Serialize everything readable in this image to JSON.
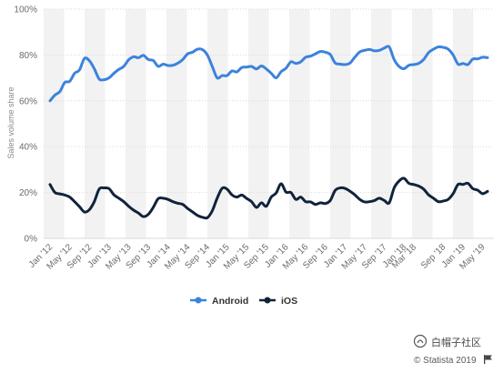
{
  "watermark": {
    "text": "白帽子社区",
    "icon": "wechat-official-account-icon"
  },
  "credit": {
    "text": "© Statista 2019",
    "icon": "flag-icon"
  },
  "chart_data": {
    "type": "line",
    "ylabel": "Sales volume share",
    "xlabel": "",
    "title": "",
    "ylim": [
      0,
      100
    ],
    "y_ticks": [
      "0%",
      "20%",
      "40%",
      "60%",
      "80%",
      "100%"
    ],
    "y_tick_values": [
      0,
      20,
      40,
      60,
      80,
      100
    ],
    "grid": "horizontal",
    "legend_position": "bottom-center",
    "x_ticks": [
      "Jan '12",
      "May '12",
      "Sep '12",
      "Jan '13",
      "May '13",
      "Sep '13",
      "Jan '14",
      "May '14",
      "Sep '14",
      "Jan '15",
      "May '15",
      "Sep '15",
      "Jan '16",
      "May '16",
      "Sep '16",
      "Jan '17",
      "May '17",
      "Sep '17",
      "Jan '18",
      "Mar '18",
      "Sep '18",
      "Jan '19",
      "May '19"
    ],
    "x_tick_months": [
      0,
      4,
      8,
      12,
      16,
      20,
      24,
      28,
      32,
      36,
      40,
      44,
      48,
      52,
      56,
      60,
      64,
      68,
      72,
      74,
      80,
      84,
      88
    ],
    "x": [
      "Jan '12",
      "Feb '12",
      "Mar '12",
      "Apr '12",
      "May '12",
      "Jun '12",
      "Jul '12",
      "Aug '12",
      "Sep '12",
      "Oct '12",
      "Nov '12",
      "Dec '12",
      "Jan '13",
      "Feb '13",
      "Mar '13",
      "Apr '13",
      "May '13",
      "Jun '13",
      "Jul '13",
      "Aug '13",
      "Sep '13",
      "Oct '13",
      "Nov '13",
      "Dec '13",
      "Jan '14",
      "Feb '14",
      "Mar '14",
      "Apr '14",
      "May '14",
      "Jun '14",
      "Jul '14",
      "Aug '14",
      "Sep '14",
      "Oct '14",
      "Nov '14",
      "Dec '14",
      "Jan '15",
      "Feb '15",
      "Mar '15",
      "Apr '15",
      "May '15",
      "Jun '15",
      "Jul '15",
      "Aug '15",
      "Sep '15",
      "Oct '15",
      "Nov '15",
      "Dec '15",
      "Jan '16",
      "Feb '16",
      "Mar '16",
      "Apr '16",
      "May '16",
      "Jun '16",
      "Jul '16",
      "Aug '16",
      "Sep '16",
      "Oct '16",
      "Nov '16",
      "Dec '16",
      "Jan '17",
      "Feb '17",
      "Mar '17",
      "Apr '17",
      "May '17",
      "Jun '17",
      "Jul '17",
      "Aug '17",
      "Sep '17",
      "Oct '17",
      "Nov '17",
      "Dec '17",
      "Jan '18",
      "Feb '18",
      "Mar '18",
      "Apr '18",
      "May '18",
      "Jun '18",
      "Jul '18",
      "Aug '18",
      "Sep '18",
      "Oct '18",
      "Nov '18",
      "Dec '18",
      "Jan '19",
      "Feb '19",
      "Mar '19",
      "Apr '19",
      "May '19",
      "Jun '19"
    ],
    "series": [
      {
        "name": "Android",
        "color": "#3b83db",
        "values": [
          60,
          62.5,
          64,
          68,
          68.5,
          72,
          73.5,
          78.5,
          77.5,
          74,
          69.5,
          69.2,
          70,
          72,
          73.7,
          75,
          77.9,
          79.2,
          78.8,
          79.8,
          78,
          77.6,
          75,
          76,
          75.4,
          75.5,
          76.4,
          78,
          80.5,
          81.2,
          82.5,
          82.3,
          80,
          75,
          70,
          71,
          71,
          73,
          72.6,
          74.5,
          74.7,
          75,
          73.9,
          75.2,
          73.9,
          72,
          70,
          72.7,
          74.2,
          77,
          76.3,
          77,
          79,
          79.5,
          80.5,
          81.5,
          81.2,
          80.2,
          76.5,
          76,
          75.8,
          76.4,
          79,
          81.3,
          82,
          82.4,
          81.8,
          82,
          83,
          83.5,
          78,
          75,
          74,
          75.5,
          75.8,
          76.3,
          78,
          81,
          82.5,
          83.5,
          83.3,
          82.5,
          80,
          76,
          76.3,
          75.8,
          78.2,
          78.3,
          79,
          78.8
        ]
      },
      {
        "name": "iOS",
        "color": "#10233b",
        "values": [
          23.5,
          20,
          19.4,
          18.9,
          18,
          16,
          13.8,
          11.5,
          12.5,
          16,
          21.5,
          22,
          21.7,
          19,
          17.5,
          16,
          14,
          12.3,
          11,
          9.5,
          10.5,
          13.5,
          17.3,
          17.5,
          17,
          16,
          15.3,
          14.8,
          13,
          11.5,
          10,
          9.2,
          9,
          12,
          17.5,
          21.8,
          21.5,
          19,
          18,
          18.9,
          17.4,
          16,
          13.5,
          15.5,
          14,
          18,
          19.8,
          23.8,
          20.2,
          20,
          17,
          18,
          16,
          15.9,
          14.8,
          15.5,
          15.2,
          16.5,
          20.9,
          22,
          21.8,
          20.6,
          19,
          17,
          15.9,
          16,
          16.5,
          17.5,
          16.5,
          15.5,
          22,
          25,
          26.2,
          24,
          23.5,
          22.8,
          21.5,
          19,
          17.5,
          16,
          16.3,
          17,
          19.5,
          23.5,
          23.5,
          24,
          21.7,
          21,
          19.5,
          20.5
        ]
      }
    ]
  }
}
